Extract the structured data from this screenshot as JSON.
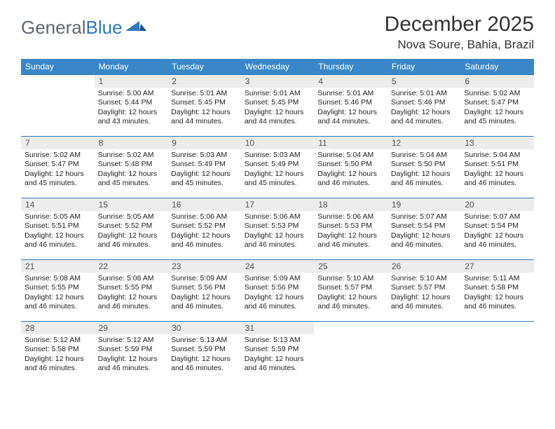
{
  "logo": {
    "word1": "General",
    "word2": "Blue"
  },
  "title": "December 2025",
  "location": "Nova Soure, Bahia, Brazil",
  "headers": [
    "Sunday",
    "Monday",
    "Tuesday",
    "Wednesday",
    "Thursday",
    "Friday",
    "Saturday"
  ],
  "style": {
    "header_bg": "#3987c8",
    "header_fg": "#ffffff",
    "row_border": "#2f79bd",
    "daynum_bg": "#ececec",
    "page_bg": "#ffffff",
    "logo_gray": "#5d6770",
    "logo_blue": "#2f79bd",
    "body_font_size": 10.5,
    "header_font_size": 12,
    "title_font_size": 30,
    "location_font_size": 17
  },
  "weeks": [
    [
      {
        "n": "",
        "sunrise": "",
        "sunset": "",
        "daylight": ""
      },
      {
        "n": "1",
        "sunrise": "Sunrise: 5:00 AM",
        "sunset": "Sunset: 5:44 PM",
        "daylight": "Daylight: 12 hours and 43 minutes."
      },
      {
        "n": "2",
        "sunrise": "Sunrise: 5:01 AM",
        "sunset": "Sunset: 5:45 PM",
        "daylight": "Daylight: 12 hours and 44 minutes."
      },
      {
        "n": "3",
        "sunrise": "Sunrise: 5:01 AM",
        "sunset": "Sunset: 5:45 PM",
        "daylight": "Daylight: 12 hours and 44 minutes."
      },
      {
        "n": "4",
        "sunrise": "Sunrise: 5:01 AM",
        "sunset": "Sunset: 5:46 PM",
        "daylight": "Daylight: 12 hours and 44 minutes."
      },
      {
        "n": "5",
        "sunrise": "Sunrise: 5:01 AM",
        "sunset": "Sunset: 5:46 PM",
        "daylight": "Daylight: 12 hours and 44 minutes."
      },
      {
        "n": "6",
        "sunrise": "Sunrise: 5:02 AM",
        "sunset": "Sunset: 5:47 PM",
        "daylight": "Daylight: 12 hours and 45 minutes."
      }
    ],
    [
      {
        "n": "7",
        "sunrise": "Sunrise: 5:02 AM",
        "sunset": "Sunset: 5:47 PM",
        "daylight": "Daylight: 12 hours and 45 minutes."
      },
      {
        "n": "8",
        "sunrise": "Sunrise: 5:02 AM",
        "sunset": "Sunset: 5:48 PM",
        "daylight": "Daylight: 12 hours and 45 minutes."
      },
      {
        "n": "9",
        "sunrise": "Sunrise: 5:03 AM",
        "sunset": "Sunset: 5:49 PM",
        "daylight": "Daylight: 12 hours and 45 minutes."
      },
      {
        "n": "10",
        "sunrise": "Sunrise: 5:03 AM",
        "sunset": "Sunset: 5:49 PM",
        "daylight": "Daylight: 12 hours and 45 minutes."
      },
      {
        "n": "11",
        "sunrise": "Sunrise: 5:04 AM",
        "sunset": "Sunset: 5:50 PM",
        "daylight": "Daylight: 12 hours and 46 minutes."
      },
      {
        "n": "12",
        "sunrise": "Sunrise: 5:04 AM",
        "sunset": "Sunset: 5:50 PM",
        "daylight": "Daylight: 12 hours and 46 minutes."
      },
      {
        "n": "13",
        "sunrise": "Sunrise: 5:04 AM",
        "sunset": "Sunset: 5:51 PM",
        "daylight": "Daylight: 12 hours and 46 minutes."
      }
    ],
    [
      {
        "n": "14",
        "sunrise": "Sunrise: 5:05 AM",
        "sunset": "Sunset: 5:51 PM",
        "daylight": "Daylight: 12 hours and 46 minutes."
      },
      {
        "n": "15",
        "sunrise": "Sunrise: 5:05 AM",
        "sunset": "Sunset: 5:52 PM",
        "daylight": "Daylight: 12 hours and 46 minutes."
      },
      {
        "n": "16",
        "sunrise": "Sunrise: 5:06 AM",
        "sunset": "Sunset: 5:52 PM",
        "daylight": "Daylight: 12 hours and 46 minutes."
      },
      {
        "n": "17",
        "sunrise": "Sunrise: 5:06 AM",
        "sunset": "Sunset: 5:53 PM",
        "daylight": "Daylight: 12 hours and 46 minutes."
      },
      {
        "n": "18",
        "sunrise": "Sunrise: 5:06 AM",
        "sunset": "Sunset: 5:53 PM",
        "daylight": "Daylight: 12 hours and 46 minutes."
      },
      {
        "n": "19",
        "sunrise": "Sunrise: 5:07 AM",
        "sunset": "Sunset: 5:54 PM",
        "daylight": "Daylight: 12 hours and 46 minutes."
      },
      {
        "n": "20",
        "sunrise": "Sunrise: 5:07 AM",
        "sunset": "Sunset: 5:54 PM",
        "daylight": "Daylight: 12 hours and 46 minutes."
      }
    ],
    [
      {
        "n": "21",
        "sunrise": "Sunrise: 5:08 AM",
        "sunset": "Sunset: 5:55 PM",
        "daylight": "Daylight: 12 hours and 46 minutes."
      },
      {
        "n": "22",
        "sunrise": "Sunrise: 5:08 AM",
        "sunset": "Sunset: 5:55 PM",
        "daylight": "Daylight: 12 hours and 46 minutes."
      },
      {
        "n": "23",
        "sunrise": "Sunrise: 5:09 AM",
        "sunset": "Sunset: 5:56 PM",
        "daylight": "Daylight: 12 hours and 46 minutes."
      },
      {
        "n": "24",
        "sunrise": "Sunrise: 5:09 AM",
        "sunset": "Sunset: 5:56 PM",
        "daylight": "Daylight: 12 hours and 46 minutes."
      },
      {
        "n": "25",
        "sunrise": "Sunrise: 5:10 AM",
        "sunset": "Sunset: 5:57 PM",
        "daylight": "Daylight: 12 hours and 46 minutes."
      },
      {
        "n": "26",
        "sunrise": "Sunrise: 5:10 AM",
        "sunset": "Sunset: 5:57 PM",
        "daylight": "Daylight: 12 hours and 46 minutes."
      },
      {
        "n": "27",
        "sunrise": "Sunrise: 5:11 AM",
        "sunset": "Sunset: 5:58 PM",
        "daylight": "Daylight: 12 hours and 46 minutes."
      }
    ],
    [
      {
        "n": "28",
        "sunrise": "Sunrise: 5:12 AM",
        "sunset": "Sunset: 5:58 PM",
        "daylight": "Daylight: 12 hours and 46 minutes."
      },
      {
        "n": "29",
        "sunrise": "Sunrise: 5:12 AM",
        "sunset": "Sunset: 5:59 PM",
        "daylight": "Daylight: 12 hours and 46 minutes."
      },
      {
        "n": "30",
        "sunrise": "Sunrise: 5:13 AM",
        "sunset": "Sunset: 5:59 PM",
        "daylight": "Daylight: 12 hours and 46 minutes."
      },
      {
        "n": "31",
        "sunrise": "Sunrise: 5:13 AM",
        "sunset": "Sunset: 5:59 PM",
        "daylight": "Daylight: 12 hours and 46 minutes."
      },
      {
        "n": "",
        "sunrise": "",
        "sunset": "",
        "daylight": ""
      },
      {
        "n": "",
        "sunrise": "",
        "sunset": "",
        "daylight": ""
      },
      {
        "n": "",
        "sunrise": "",
        "sunset": "",
        "daylight": ""
      }
    ]
  ]
}
